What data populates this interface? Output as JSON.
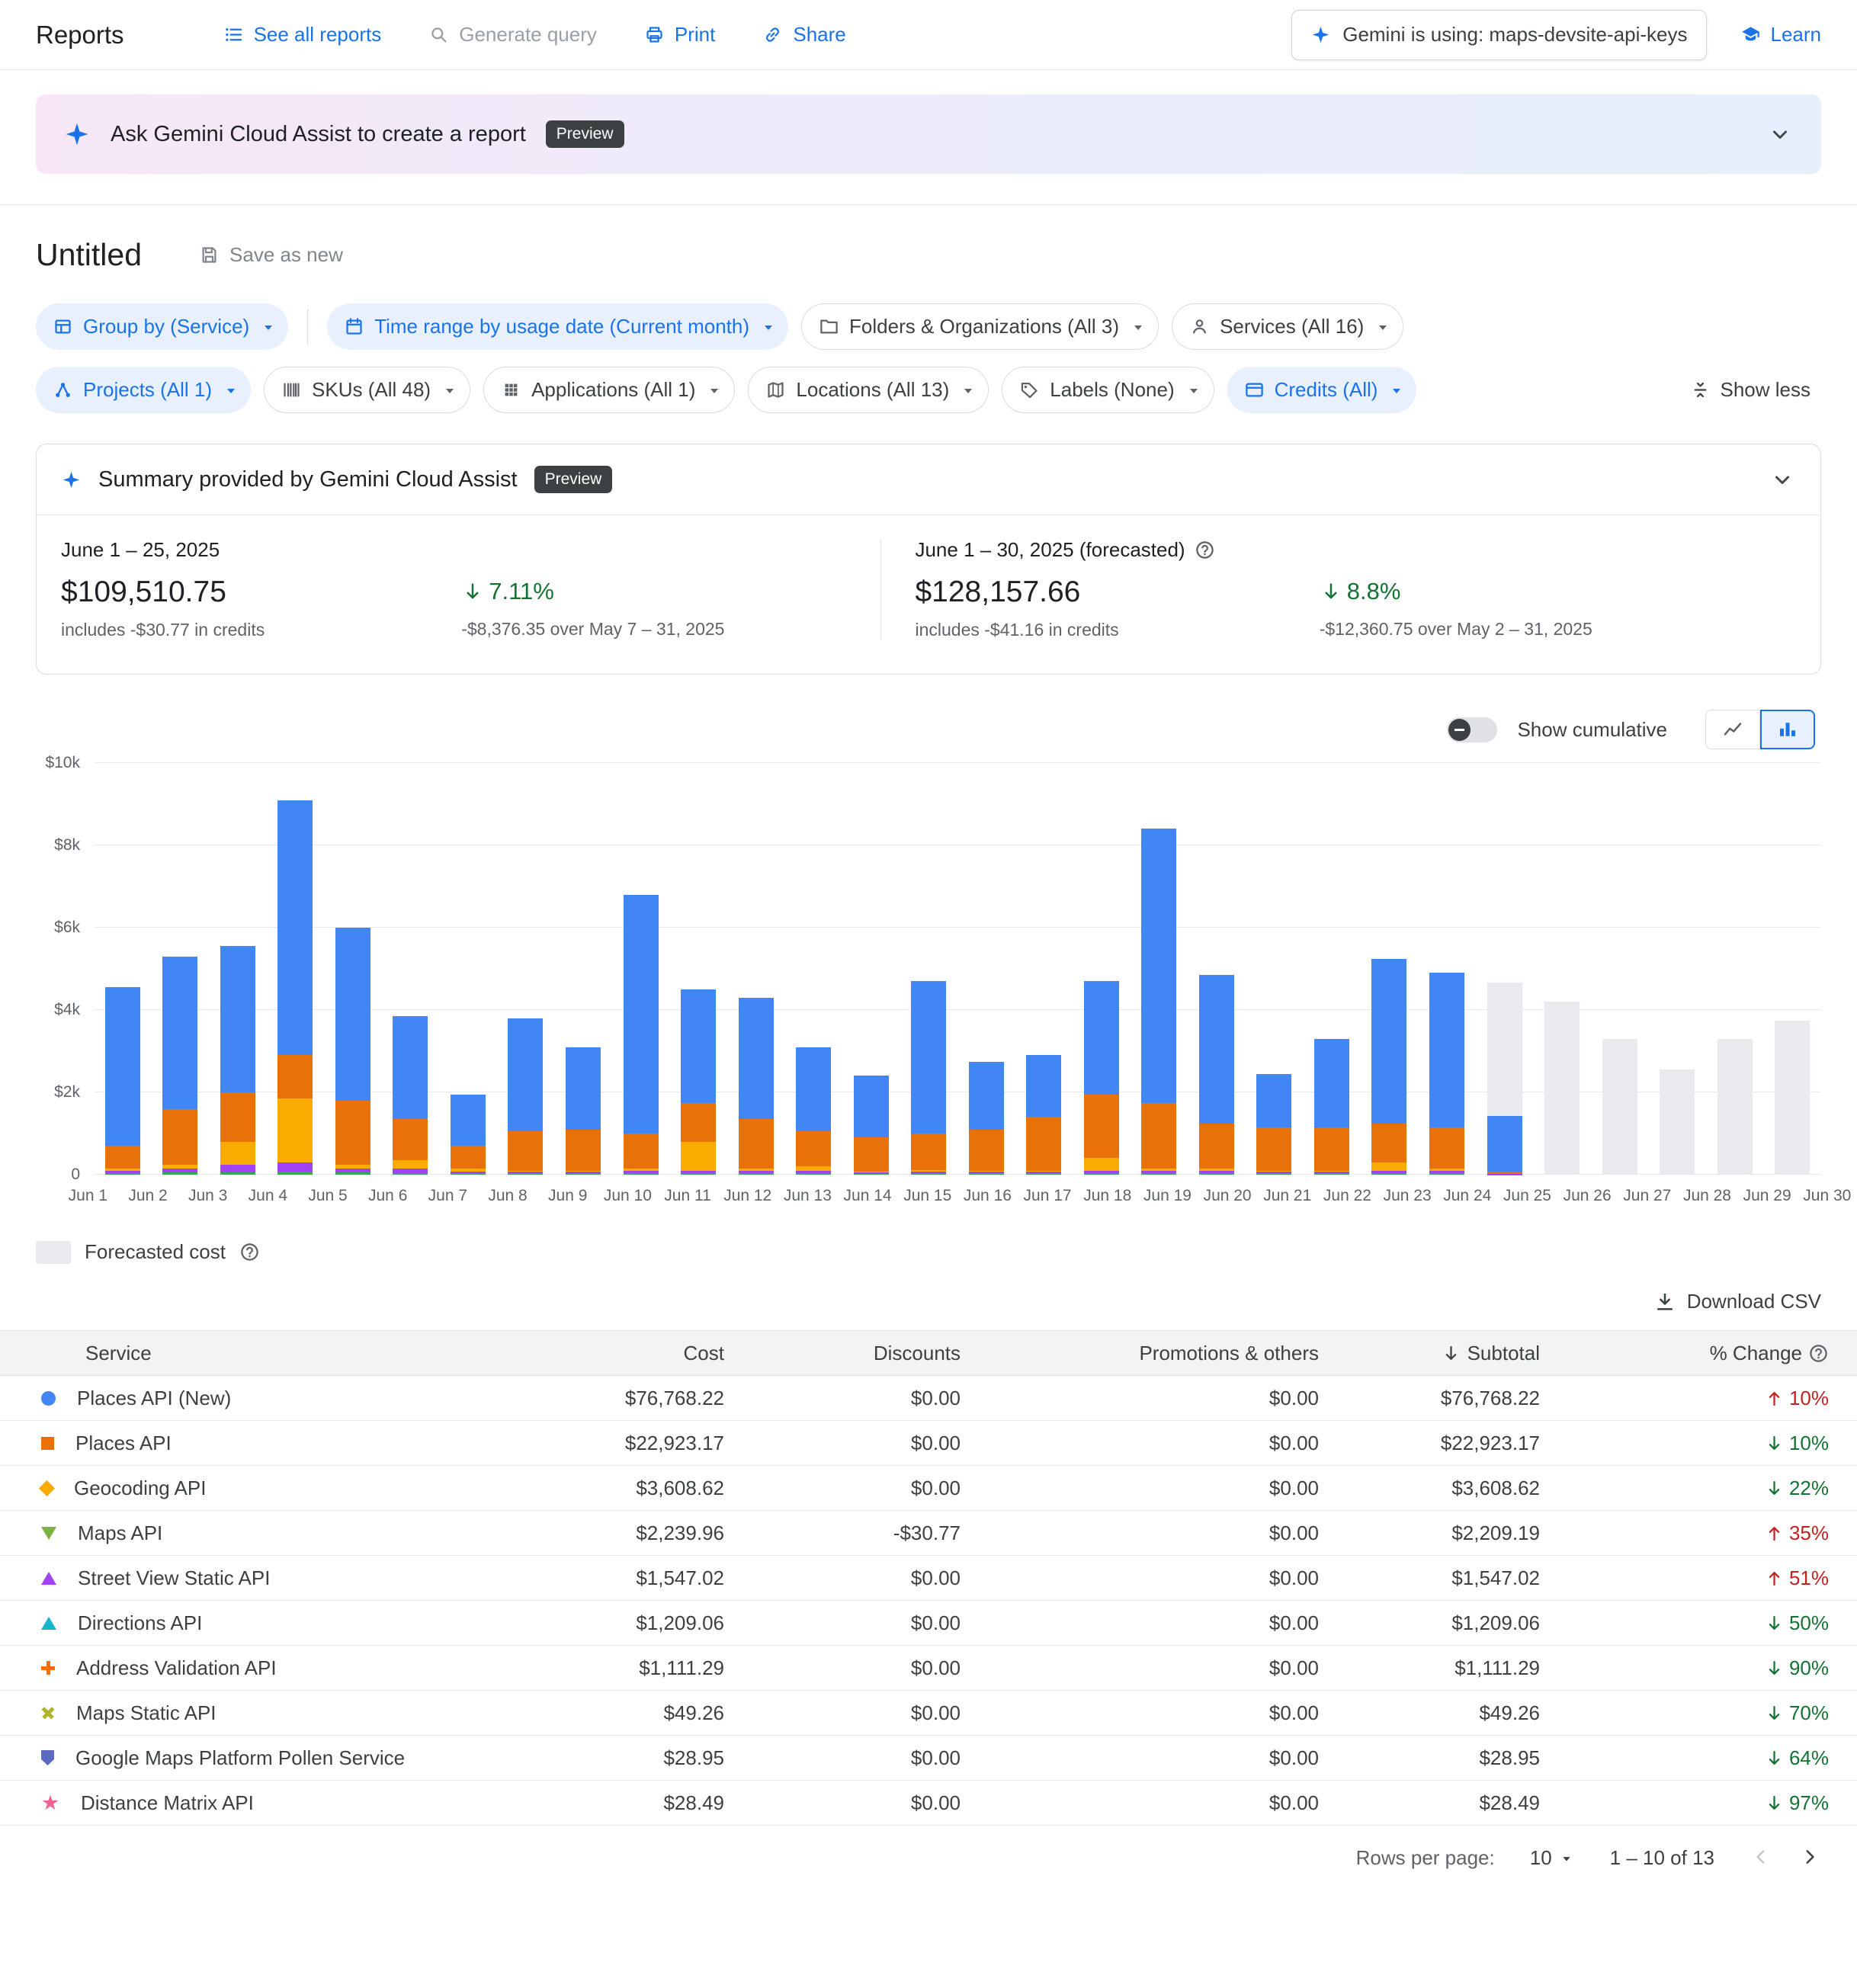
{
  "header": {
    "title": "Reports",
    "see_all_reports": "See all reports",
    "generate_query": "Generate query",
    "print": "Print",
    "share": "Share",
    "gemini_badge": "Gemini is using: maps-devsite-api-keys",
    "learn": "Learn"
  },
  "banner": {
    "text": "Ask Gemini Cloud Assist to create a report",
    "badge": "Preview"
  },
  "report": {
    "title": "Untitled",
    "save_as_new": "Save as new"
  },
  "filters": {
    "row1": [
      {
        "label": "Group by (Service)",
        "icon": "table",
        "style": "blue"
      },
      {
        "divider": true
      },
      {
        "label": "Time range by usage date (Current month)",
        "icon": "calendar",
        "style": "blue"
      },
      {
        "label": "Folders & Organizations (All 3)",
        "icon": "folder",
        "style": "plain"
      },
      {
        "label": "Services (All 16)",
        "icon": "person",
        "style": "plain"
      }
    ],
    "row2": [
      {
        "label": "Projects (All 1)",
        "icon": "projects",
        "style": "blue"
      },
      {
        "label": "SKUs (All 48)",
        "icon": "barcode",
        "style": "plain"
      },
      {
        "label": "Applications (All 1)",
        "icon": "grid",
        "style": "plain"
      },
      {
        "label": "Locations (All 13)",
        "icon": "map",
        "style": "plain"
      },
      {
        "label": "Labels (None)",
        "icon": "tag",
        "style": "plain"
      },
      {
        "label": "Credits (All)",
        "icon": "card",
        "style": "blue"
      }
    ],
    "show_less": "Show less"
  },
  "summary": {
    "title": "Summary provided by Gemini Cloud Assist",
    "badge": "Preview",
    "current": {
      "period": "June 1 – 25, 2025",
      "amount": "$109,510.75",
      "note": "includes -$30.77 in credits",
      "change": "7.11%",
      "change_dir": "down",
      "compare": "-$8,376.35 over May 7 – 31, 2025"
    },
    "forecast": {
      "period": "June 1 – 30, 2025 (forecasted)",
      "amount": "$128,157.66",
      "note": "includes -$41.16 in credits",
      "change": "8.8%",
      "change_dir": "down",
      "compare": "-$12,360.75 over May 2 – 31, 2025"
    }
  },
  "chart_controls": {
    "cumulative_label": "Show cumulative"
  },
  "chart_data": {
    "type": "bar",
    "stacked": true,
    "ylim": [
      0,
      10000
    ],
    "yticks": [
      [
        "$10k",
        10000
      ],
      [
        "$8k",
        8000
      ],
      [
        "$6k",
        6000
      ],
      [
        "$4k",
        4000
      ],
      [
        "$2k",
        2000
      ],
      [
        "0",
        0
      ]
    ],
    "categories": [
      "Jun 1",
      "Jun 2",
      "Jun 3",
      "Jun 4",
      "Jun 5",
      "Jun 6",
      "Jun 7",
      "Jun 8",
      "Jun 9",
      "Jun 10",
      "Jun 11",
      "Jun 12",
      "Jun 13",
      "Jun 14",
      "Jun 15",
      "Jun 16",
      "Jun 17",
      "Jun 18",
      "Jun 19",
      "Jun 20",
      "Jun 21",
      "Jun 22",
      "Jun 23",
      "Jun 24",
      "Jun 25",
      "Jun 26",
      "Jun 27",
      "Jun 28",
      "Jun 29",
      "Jun 30"
    ],
    "series": [
      {
        "name": "Maps API",
        "color": "#34a853",
        "values": [
          40,
          50,
          60,
          80,
          50,
          40,
          30,
          30,
          30,
          40,
          40,
          40,
          40,
          20,
          30,
          30,
          30,
          40,
          40,
          40,
          30,
          30,
          40,
          40,
          10,
          0,
          0,
          0,
          0,
          0
        ]
      },
      {
        "name": "Street View Static API",
        "color": "#a142f4",
        "values": [
          60,
          100,
          190,
          220,
          100,
          110,
          40,
          50,
          50,
          60,
          60,
          60,
          60,
          30,
          40,
          40,
          40,
          60,
          60,
          60,
          40,
          40,
          60,
          60,
          10,
          0,
          0,
          0,
          0,
          0
        ]
      },
      {
        "name": "Geocoding API",
        "color": "#f9ab00",
        "values": [
          50,
          100,
          550,
          1550,
          100,
          200,
          80,
          20,
          20,
          50,
          700,
          50,
          100,
          30,
          50,
          30,
          30,
          300,
          50,
          50,
          30,
          30,
          200,
          50,
          0,
          0,
          0,
          0,
          0,
          0
        ]
      },
      {
        "name": "Places API",
        "color": "#e8710a",
        "values": [
          550,
          1350,
          1200,
          1050,
          1550,
          1000,
          550,
          950,
          1000,
          850,
          950,
          1200,
          850,
          820,
          880,
          1000,
          1300,
          1550,
          1600,
          1100,
          1050,
          1050,
          950,
          1000,
          50,
          0,
          0,
          0,
          0,
          0
        ]
      },
      {
        "name": "Places API (New)",
        "color": "#4285f4",
        "values": [
          3850,
          3700,
          3550,
          6200,
          4200,
          2500,
          1250,
          2750,
          2000,
          5800,
          2750,
          2950,
          2050,
          1500,
          3700,
          1650,
          1500,
          2750,
          6650,
          3600,
          1300,
          2150,
          4000,
          3750,
          1350,
          0,
          0,
          0,
          0,
          0
        ]
      },
      {
        "name": "Forecasted cost",
        "color": "#e8eaed",
        "values": [
          0,
          0,
          0,
          0,
          0,
          0,
          0,
          0,
          0,
          0,
          0,
          0,
          0,
          0,
          0,
          0,
          0,
          0,
          0,
          0,
          0,
          0,
          0,
          0,
          3250,
          4200,
          3300,
          2550,
          3300,
          3750
        ]
      }
    ],
    "legend_position": "bottom-left",
    "grid": true
  },
  "legend": {
    "forecast": "Forecasted cost"
  },
  "download_csv": "Download CSV",
  "table": {
    "columns": [
      "Service",
      "Cost",
      "Discounts",
      "Promotions & others",
      "Subtotal",
      "% Change"
    ],
    "rows": [
      {
        "marker": "circle",
        "color": "#4285f4",
        "service": "Places API (New)",
        "cost": "$76,768.22",
        "discounts": "$0.00",
        "promotions": "$0.00",
        "subtotal": "$76,768.22",
        "change": "10%",
        "change_dir": "up"
      },
      {
        "marker": "square",
        "color": "#e8710a",
        "service": "Places API",
        "cost": "$22,923.17",
        "discounts": "$0.00",
        "promotions": "$0.00",
        "subtotal": "$22,923.17",
        "change": "10%",
        "change_dir": "down"
      },
      {
        "marker": "diamond",
        "color": "#f9ab00",
        "service": "Geocoding API",
        "cost": "$3,608.62",
        "discounts": "$0.00",
        "promotions": "$0.00",
        "subtotal": "$3,608.62",
        "change": "22%",
        "change_dir": "down"
      },
      {
        "marker": "tri-down",
        "color": "#7cb342",
        "service": "Maps API",
        "cost": "$2,239.96",
        "discounts": "-$30.77",
        "promotions": "$0.00",
        "subtotal": "$2,209.19",
        "change": "35%",
        "change_dir": "up"
      },
      {
        "marker": "tri-up",
        "color": "#a142f4",
        "service": "Street View Static API",
        "cost": "$1,547.02",
        "discounts": "$0.00",
        "promotions": "$0.00",
        "subtotal": "$1,547.02",
        "change": "51%",
        "change_dir": "up"
      },
      {
        "marker": "tri-up",
        "color": "#12b5cb",
        "service": "Directions API",
        "cost": "$1,209.06",
        "discounts": "$0.00",
        "promotions": "$0.00",
        "subtotal": "$1,209.06",
        "change": "50%",
        "change_dir": "down"
      },
      {
        "marker": "plus",
        "color": "#ff6d01",
        "service": "Address Validation API",
        "cost": "$1,111.29",
        "discounts": "$0.00",
        "promotions": "$0.00",
        "subtotal": "$1,111.29",
        "change": "90%",
        "change_dir": "down"
      },
      {
        "marker": "x",
        "color": "#afb42b",
        "service": "Maps Static API",
        "cost": "$49.26",
        "discounts": "$0.00",
        "promotions": "$0.00",
        "subtotal": "$49.26",
        "change": "70%",
        "change_dir": "down"
      },
      {
        "marker": "shield",
        "color": "#5c6bc0",
        "service": "Google Maps Platform Pollen Service",
        "cost": "$28.95",
        "discounts": "$0.00",
        "promotions": "$0.00",
        "subtotal": "$28.95",
        "change": "64%",
        "change_dir": "down"
      },
      {
        "marker": "star",
        "color": "#f06292",
        "service": "Distance Matrix API",
        "cost": "$28.49",
        "discounts": "$0.00",
        "promotions": "$0.00",
        "subtotal": "$28.49",
        "change": "97%",
        "change_dir": "down"
      }
    ]
  },
  "pagination": {
    "rows_per_page_label": "Rows per page:",
    "rows_per_page_value": "10",
    "range": "1 – 10 of 13"
  },
  "colors": {
    "link": "#1a73e8",
    "up": "#c5221f",
    "down": "#137333",
    "forecast": "#e8eaed"
  }
}
